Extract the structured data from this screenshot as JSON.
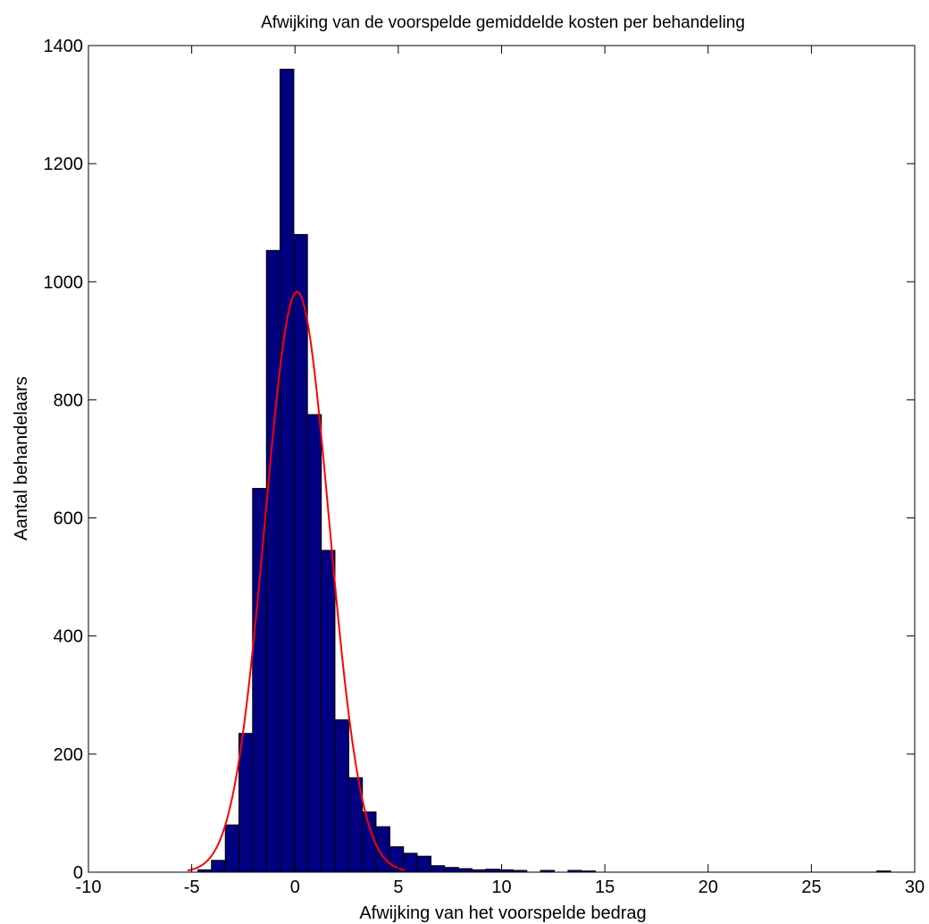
{
  "chart_data": {
    "type": "bar",
    "title": "Afwijking van de voorspelde gemiddelde kosten per behandeling",
    "xlabel": "Afwijking van het voorspelde bedrag",
    "ylabel": "Aantal behandelaars",
    "xlim": [
      -10,
      30
    ],
    "ylim": [
      0,
      1400
    ],
    "xticks": [
      -10,
      -5,
      0,
      5,
      10,
      15,
      20,
      25,
      30
    ],
    "yticks": [
      0,
      200,
      400,
      600,
      800,
      1000,
      1200,
      1400
    ],
    "grid": false,
    "bin_width": 0.667,
    "bins": [
      {
        "x": -4.37,
        "count": 4
      },
      {
        "x": -3.71,
        "count": 20
      },
      {
        "x": -3.04,
        "count": 80
      },
      {
        "x": -2.38,
        "count": 235
      },
      {
        "x": -1.72,
        "count": 650
      },
      {
        "x": -1.05,
        "count": 1053
      },
      {
        "x": -0.39,
        "count": 1360
      },
      {
        "x": 0.27,
        "count": 1080
      },
      {
        "x": 0.94,
        "count": 775
      },
      {
        "x": 1.6,
        "count": 545
      },
      {
        "x": 2.27,
        "count": 258
      },
      {
        "x": 2.93,
        "count": 160
      },
      {
        "x": 3.59,
        "count": 102
      },
      {
        "x": 4.26,
        "count": 77
      },
      {
        "x": 4.92,
        "count": 43
      },
      {
        "x": 5.58,
        "count": 32
      },
      {
        "x": 6.25,
        "count": 27
      },
      {
        "x": 6.91,
        "count": 11
      },
      {
        "x": 7.58,
        "count": 8
      },
      {
        "x": 8.24,
        "count": 6
      },
      {
        "x": 8.9,
        "count": 4
      },
      {
        "x": 9.57,
        "count": 5
      },
      {
        "x": 10.23,
        "count": 4
      },
      {
        "x": 10.89,
        "count": 3
      },
      {
        "x": 12.22,
        "count": 3
      },
      {
        "x": 13.55,
        "count": 3
      },
      {
        "x": 14.21,
        "count": 2
      },
      {
        "x": 28.5,
        "count": 2
      }
    ],
    "fit_curve": {
      "type": "normal",
      "mean": 0.1,
      "sd": 1.55,
      "peak": 983,
      "x_range": [
        -5.2,
        5.3
      ],
      "color": "#ff0000"
    },
    "bar_color": "#000080",
    "bar_edge_color": "#000000"
  }
}
